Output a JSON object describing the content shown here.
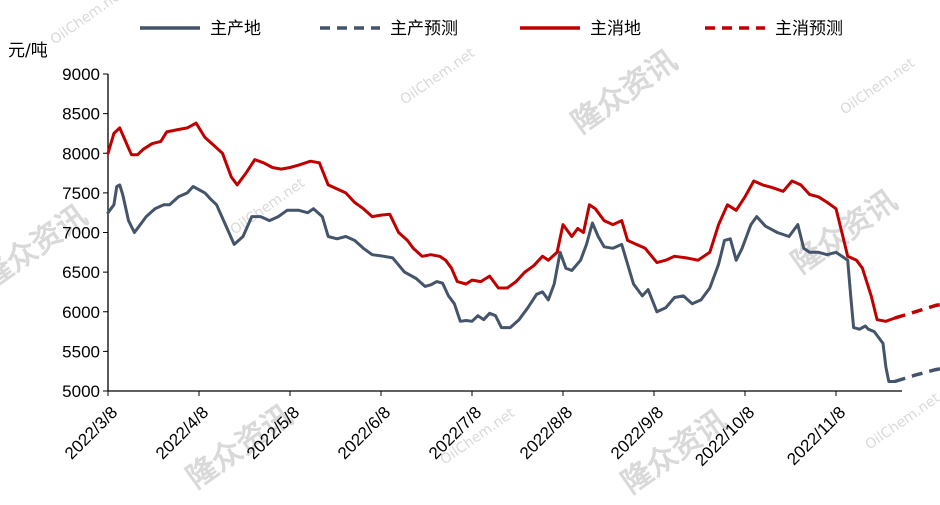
{
  "chart_data": {
    "type": "line",
    "ylabel": "元/吨",
    "ylim": [
      5000,
      9000
    ],
    "yticks": [
      "5000",
      "5500",
      "6000",
      "6500",
      "7000",
      "7500",
      "8000",
      "8500",
      "9000"
    ],
    "xticks": [
      "2022/3/8",
      "2022/4/8",
      "2022/5/8",
      "2022/6/8",
      "2022/7/8",
      "2022/8/8",
      "2022/9/8",
      "2022/10/8",
      "2022/11/8"
    ],
    "grid": false,
    "legend_position": "top",
    "series": [
      {
        "name": "主产地",
        "color": "#44546a",
        "style": "solid",
        "points": [
          [
            "2022-03-08",
            7250
          ],
          [
            "2022-03-10",
            7350
          ],
          [
            "2022-03-11",
            7580
          ],
          [
            "2022-03-12",
            7600
          ],
          [
            "2022-03-13",
            7480
          ],
          [
            "2022-03-15",
            7150
          ],
          [
            "2022-03-17",
            7000
          ],
          [
            "2022-03-19",
            7100
          ],
          [
            "2022-03-21",
            7200
          ],
          [
            "2022-03-24",
            7300
          ],
          [
            "2022-03-27",
            7350
          ],
          [
            "2022-03-29",
            7350
          ],
          [
            "2022-04-01",
            7450
          ],
          [
            "2022-04-04",
            7500
          ],
          [
            "2022-04-06",
            7580
          ],
          [
            "2022-04-10",
            7500
          ],
          [
            "2022-04-12",
            7420
          ],
          [
            "2022-04-14",
            7350
          ],
          [
            "2022-04-17",
            7100
          ],
          [
            "2022-04-20",
            6850
          ],
          [
            "2022-04-23",
            6950
          ],
          [
            "2022-04-26",
            7200
          ],
          [
            "2022-04-29",
            7200
          ],
          [
            "2022-05-02",
            7150
          ],
          [
            "2022-05-05",
            7200
          ],
          [
            "2022-05-08",
            7280
          ],
          [
            "2022-05-12",
            7280
          ],
          [
            "2022-05-15",
            7250
          ],
          [
            "2022-05-17",
            7300
          ],
          [
            "2022-05-20",
            7200
          ],
          [
            "2022-05-22",
            6950
          ],
          [
            "2022-05-25",
            6920
          ],
          [
            "2022-05-28",
            6950
          ],
          [
            "2022-05-31",
            6900
          ],
          [
            "2022-06-03",
            6800
          ],
          [
            "2022-06-06",
            6720
          ],
          [
            "2022-06-10",
            6700
          ],
          [
            "2022-06-13",
            6680
          ],
          [
            "2022-06-17",
            6500
          ],
          [
            "2022-06-21",
            6420
          ],
          [
            "2022-06-24",
            6320
          ],
          [
            "2022-06-26",
            6340
          ],
          [
            "2022-06-28",
            6380
          ],
          [
            "2022-06-30",
            6360
          ],
          [
            "2022-07-02",
            6200
          ],
          [
            "2022-07-04",
            6100
          ],
          [
            "2022-07-06",
            5880
          ],
          [
            "2022-07-08",
            5890
          ],
          [
            "2022-07-10",
            5880
          ],
          [
            "2022-07-12",
            5950
          ],
          [
            "2022-07-14",
            5900
          ],
          [
            "2022-07-16",
            5980
          ],
          [
            "2022-07-18",
            5950
          ],
          [
            "2022-07-20",
            5800
          ],
          [
            "2022-07-23",
            5800
          ],
          [
            "2022-07-26",
            5900
          ],
          [
            "2022-07-29",
            6050
          ],
          [
            "2022-08-01",
            6220
          ],
          [
            "2022-08-03",
            6250
          ],
          [
            "2022-08-05",
            6150
          ],
          [
            "2022-08-07",
            6350
          ],
          [
            "2022-08-09",
            6750
          ],
          [
            "2022-08-11",
            6550
          ],
          [
            "2022-08-13",
            6520
          ],
          [
            "2022-08-16",
            6650
          ],
          [
            "2022-08-18",
            6850
          ],
          [
            "2022-08-20",
            7120
          ],
          [
            "2022-08-22",
            6950
          ],
          [
            "2022-08-24",
            6820
          ],
          [
            "2022-08-27",
            6800
          ],
          [
            "2022-08-30",
            6850
          ],
          [
            "2022-09-01",
            6600
          ],
          [
            "2022-09-03",
            6350
          ],
          [
            "2022-09-06",
            6200
          ],
          [
            "2022-09-08",
            6280
          ],
          [
            "2022-09-11",
            6000
          ],
          [
            "2022-09-14",
            6050
          ],
          [
            "2022-09-17",
            6180
          ],
          [
            "2022-09-20",
            6200
          ],
          [
            "2022-09-23",
            6100
          ],
          [
            "2022-09-26",
            6150
          ],
          [
            "2022-09-29",
            6300
          ],
          [
            "2022-10-02",
            6600
          ],
          [
            "2022-10-04",
            6900
          ],
          [
            "2022-10-06",
            6920
          ],
          [
            "2022-10-08",
            6650
          ],
          [
            "2022-10-10",
            6800
          ],
          [
            "2022-10-13",
            7100
          ],
          [
            "2022-10-15",
            7200
          ],
          [
            "2022-10-18",
            7080
          ],
          [
            "2022-10-22",
            7000
          ],
          [
            "2022-10-26",
            6950
          ],
          [
            "2022-10-29",
            7100
          ],
          [
            "2022-10-31",
            6800
          ],
          [
            "2022-11-02",
            6750
          ],
          [
            "2022-11-05",
            6750
          ],
          [
            "2022-11-08",
            6720
          ],
          [
            "2022-11-11",
            6750
          ],
          [
            "2022-11-13",
            6700
          ],
          [
            "2022-11-15",
            6650
          ],
          [
            "2022-11-16",
            6200
          ],
          [
            "2022-11-17",
            5800
          ],
          [
            "2022-11-19",
            5780
          ],
          [
            "2022-11-21",
            5820
          ],
          [
            "2022-11-22",
            5780
          ],
          [
            "2022-11-24",
            5750
          ],
          [
            "2022-11-27",
            5600
          ],
          [
            "2022-11-28",
            5300
          ],
          [
            "2022-11-29",
            5120
          ],
          [
            "2022-12-01",
            5120
          ]
        ]
      },
      {
        "name": "主产预测",
        "color": "#44546a",
        "style": "dashed",
        "points": [
          [
            "2022-12-01",
            5120
          ],
          [
            "2022-12-08",
            5200
          ],
          [
            "2022-12-15",
            5270
          ],
          [
            "2022-12-22",
            5320
          ],
          [
            "2022-12-29",
            5360
          ],
          [
            "2023-01-03",
            5380
          ]
        ]
      },
      {
        "name": "主消地",
        "color": "#c00000",
        "style": "solid",
        "points": [
          [
            "2022-03-08",
            8000
          ],
          [
            "2022-03-10",
            8250
          ],
          [
            "2022-03-12",
            8320
          ],
          [
            "2022-03-14",
            8150
          ],
          [
            "2022-03-16",
            7980
          ],
          [
            "2022-03-18",
            7980
          ],
          [
            "2022-03-20",
            8050
          ],
          [
            "2022-03-23",
            8120
          ],
          [
            "2022-03-26",
            8150
          ],
          [
            "2022-03-28",
            8270
          ],
          [
            "2022-04-01",
            8300
          ],
          [
            "2022-04-04",
            8320
          ],
          [
            "2022-04-07",
            8380
          ],
          [
            "2022-04-10",
            8200
          ],
          [
            "2022-04-13",
            8100
          ],
          [
            "2022-04-16",
            8000
          ],
          [
            "2022-04-19",
            7700
          ],
          [
            "2022-04-21",
            7600
          ],
          [
            "2022-04-24",
            7750
          ],
          [
            "2022-04-27",
            7920
          ],
          [
            "2022-04-30",
            7880
          ],
          [
            "2022-05-03",
            7820
          ],
          [
            "2022-05-06",
            7800
          ],
          [
            "2022-05-09",
            7820
          ],
          [
            "2022-05-12",
            7850
          ],
          [
            "2022-05-16",
            7900
          ],
          [
            "2022-05-19",
            7880
          ],
          [
            "2022-05-22",
            7600
          ],
          [
            "2022-05-25",
            7550
          ],
          [
            "2022-05-28",
            7500
          ],
          [
            "2022-05-31",
            7380
          ],
          [
            "2022-06-03",
            7300
          ],
          [
            "2022-06-06",
            7200
          ],
          [
            "2022-06-09",
            7220
          ],
          [
            "2022-06-12",
            7230
          ],
          [
            "2022-06-15",
            7000
          ],
          [
            "2022-06-18",
            6900
          ],
          [
            "2022-06-20",
            6800
          ],
          [
            "2022-06-23",
            6700
          ],
          [
            "2022-06-26",
            6720
          ],
          [
            "2022-06-29",
            6700
          ],
          [
            "2022-07-01",
            6650
          ],
          [
            "2022-07-03",
            6550
          ],
          [
            "2022-07-05",
            6380
          ],
          [
            "2022-07-08",
            6350
          ],
          [
            "2022-07-10",
            6400
          ],
          [
            "2022-07-13",
            6380
          ],
          [
            "2022-07-16",
            6450
          ],
          [
            "2022-07-19",
            6300
          ],
          [
            "2022-07-22",
            6300
          ],
          [
            "2022-07-25",
            6380
          ],
          [
            "2022-07-28",
            6500
          ],
          [
            "2022-07-31",
            6580
          ],
          [
            "2022-08-03",
            6700
          ],
          [
            "2022-08-05",
            6650
          ],
          [
            "2022-08-08",
            6750
          ],
          [
            "2022-08-10",
            7100
          ],
          [
            "2022-08-13",
            6950
          ],
          [
            "2022-08-15",
            7050
          ],
          [
            "2022-08-17",
            7000
          ],
          [
            "2022-08-19",
            7350
          ],
          [
            "2022-08-21",
            7300
          ],
          [
            "2022-08-24",
            7150
          ],
          [
            "2022-08-27",
            7100
          ],
          [
            "2022-08-30",
            7150
          ],
          [
            "2022-09-01",
            6900
          ],
          [
            "2022-09-04",
            6850
          ],
          [
            "2022-09-07",
            6800
          ],
          [
            "2022-09-11",
            6620
          ],
          [
            "2022-09-14",
            6650
          ],
          [
            "2022-09-17",
            6700
          ],
          [
            "2022-09-21",
            6680
          ],
          [
            "2022-09-25",
            6650
          ],
          [
            "2022-09-29",
            6750
          ],
          [
            "2022-10-02",
            7100
          ],
          [
            "2022-10-05",
            7350
          ],
          [
            "2022-10-08",
            7280
          ],
          [
            "2022-10-11",
            7450
          ],
          [
            "2022-10-14",
            7650
          ],
          [
            "2022-10-17",
            7600
          ],
          [
            "2022-10-20",
            7570
          ],
          [
            "2022-10-24",
            7520
          ],
          [
            "2022-10-27",
            7650
          ],
          [
            "2022-10-30",
            7600
          ],
          [
            "2022-11-02",
            7480
          ],
          [
            "2022-11-05",
            7450
          ],
          [
            "2022-11-08",
            7380
          ],
          [
            "2022-11-11",
            7300
          ],
          [
            "2022-11-13",
            7000
          ],
          [
            "2022-11-15",
            6700
          ],
          [
            "2022-11-18",
            6650
          ],
          [
            "2022-11-20",
            6550
          ],
          [
            "2022-11-23",
            6200
          ],
          [
            "2022-11-25",
            5900
          ],
          [
            "2022-11-28",
            5880
          ],
          [
            "2022-12-01",
            5920
          ]
        ]
      },
      {
        "name": "主消预测",
        "color": "#c00000",
        "style": "dashed",
        "points": [
          [
            "2022-12-01",
            5920
          ],
          [
            "2022-12-08",
            6000
          ],
          [
            "2022-12-15",
            6080
          ],
          [
            "2022-12-22",
            6120
          ],
          [
            "2022-12-29",
            6150
          ],
          [
            "2023-01-03",
            6160
          ]
        ]
      }
    ]
  },
  "watermark": {
    "brand": "隆众资讯",
    "site": "OilChem.net"
  }
}
